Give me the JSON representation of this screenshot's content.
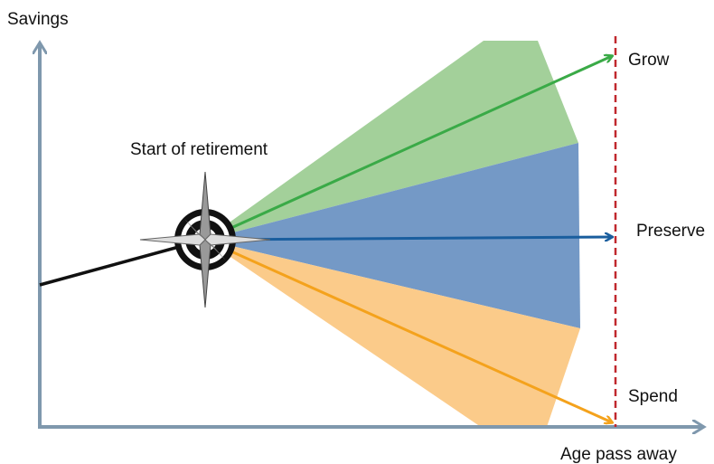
{
  "axes": {
    "y_label": "Savings",
    "x_label": "Age pass away"
  },
  "start_label": "Start of retirement",
  "paths": [
    {
      "label": "Grow"
    },
    {
      "label": "Preserve"
    },
    {
      "label": "Spend"
    }
  ]
}
